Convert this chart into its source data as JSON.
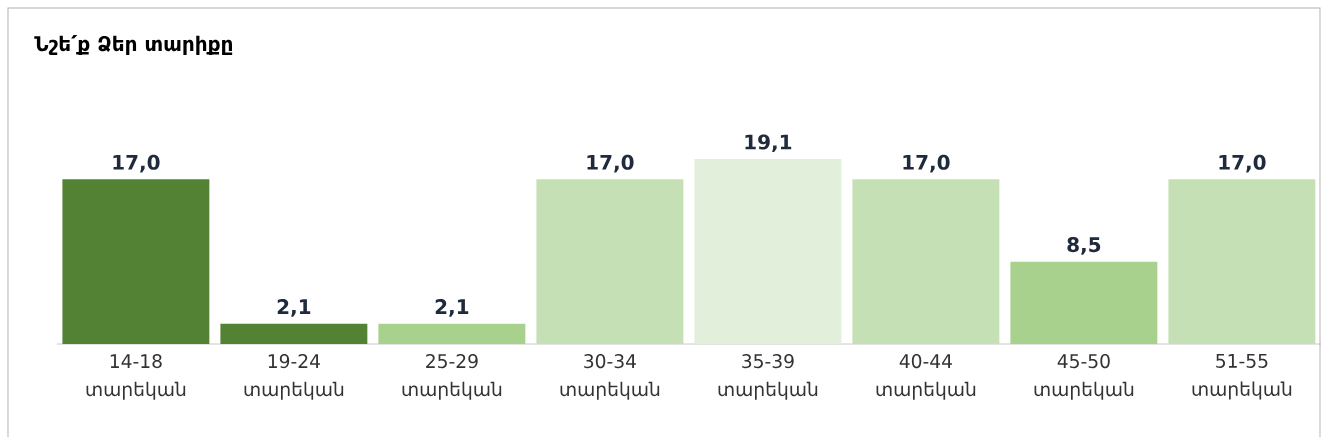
{
  "chart_data": {
    "type": "bar",
    "title": "Նշե՛ք Ձեր տարիքը",
    "categories": [
      "14-18 տարեկան",
      "19-24 տարեկան",
      "25-29 տարեկան",
      "30-34 տարեկան",
      "35-39 տարեկան",
      "40-44 տարեկան",
      "45-50 տարեկան",
      "51-55 տարեկան"
    ],
    "values": [
      17.0,
      2.1,
      2.1,
      17.0,
      19.1,
      17.0,
      8.5,
      17.0
    ],
    "colors": [
      "#548235",
      "#548235",
      "#a9d18e",
      "#c5e0b4",
      "#e2efda",
      "#c5e0b4",
      "#a9d18e",
      "#c5e0b4"
    ],
    "value_labels": [
      "17,0",
      "2,1",
      "2,1",
      "17,0",
      "19,1",
      "17,0",
      "8,5",
      "17,0"
    ]
  }
}
